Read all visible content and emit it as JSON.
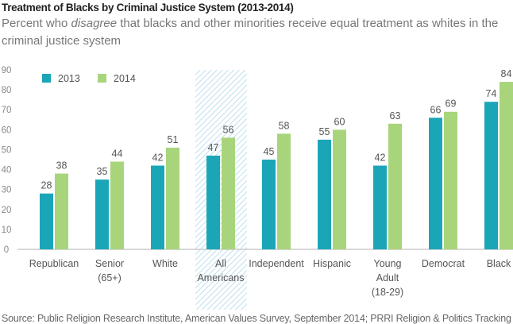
{
  "title": "Treatment of Blacks by Criminal Justice System (2013-2014)",
  "subtitle_parts": [
    "Percent who ",
    "disagree",
    " that blacks and other minorities receive equal treatment as whites in the criminal justice system"
  ],
  "source": "Source: Public Religion Research Institute, American Values Survey, September 2014; PRRI Religion & Politics Tracking",
  "colors": {
    "2013": "#1ba6b8",
    "2014": "#a8d57c",
    "highlight": "#bfe0ee"
  },
  "chart_data": {
    "type": "bar",
    "categories": [
      [
        "Republican"
      ],
      [
        "Senior",
        "(65+)"
      ],
      [
        "White"
      ],
      [
        "All",
        "Americans"
      ],
      [
        "Independent"
      ],
      [
        "Hispanic"
      ],
      [
        "Young",
        "Adult",
        "(18-29)"
      ],
      [
        "Democrat"
      ],
      [
        "Black"
      ]
    ],
    "series": [
      {
        "name": "2013",
        "values": [
          28,
          35,
          42,
          47,
          45,
          55,
          42,
          66,
          74
        ]
      },
      {
        "name": "2014",
        "values": [
          38,
          44,
          51,
          56,
          58,
          60,
          63,
          69,
          84
        ]
      }
    ],
    "highlighted_category": "All Americans",
    "ylim": [
      0,
      90
    ],
    "yticks": [
      0,
      10,
      20,
      30,
      40,
      50,
      60,
      70,
      80,
      90
    ],
    "grid": false,
    "legend": "top-left",
    "data_labels": true
  }
}
